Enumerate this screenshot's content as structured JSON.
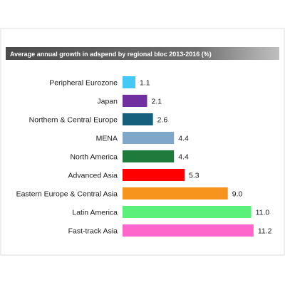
{
  "chart_data": {
    "type": "bar",
    "orientation": "horizontal",
    "title": "Average annual growth in adspend by regional bloc 2013-2016 (%)",
    "xlabel": "",
    "ylabel": "",
    "xlim": [
      0,
      12
    ],
    "grid": false,
    "legend": "none",
    "categories": [
      "Peripheral Eurozone",
      "Japan",
      "Northern & Central Europe",
      "MENA",
      "North America",
      "Advanced Asia",
      "Eastern Europe & Central Asia",
      "Latin America",
      "Fast-track Asia"
    ],
    "values": [
      1.1,
      2.1,
      2.6,
      4.4,
      4.4,
      5.3,
      9.0,
      11.0,
      11.2
    ],
    "value_labels": [
      "1.1",
      "2.1",
      "2.6",
      "4.4",
      "4.4",
      "5.3",
      "9.0",
      "11.0",
      "11.2"
    ],
    "colors": [
      "#44c8f5",
      "#7030a0",
      "#17607d",
      "#7fa7c9",
      "#1e7b3c",
      "#ff0000",
      "#f7941d",
      "#5af07a",
      "#ff66cc"
    ]
  }
}
